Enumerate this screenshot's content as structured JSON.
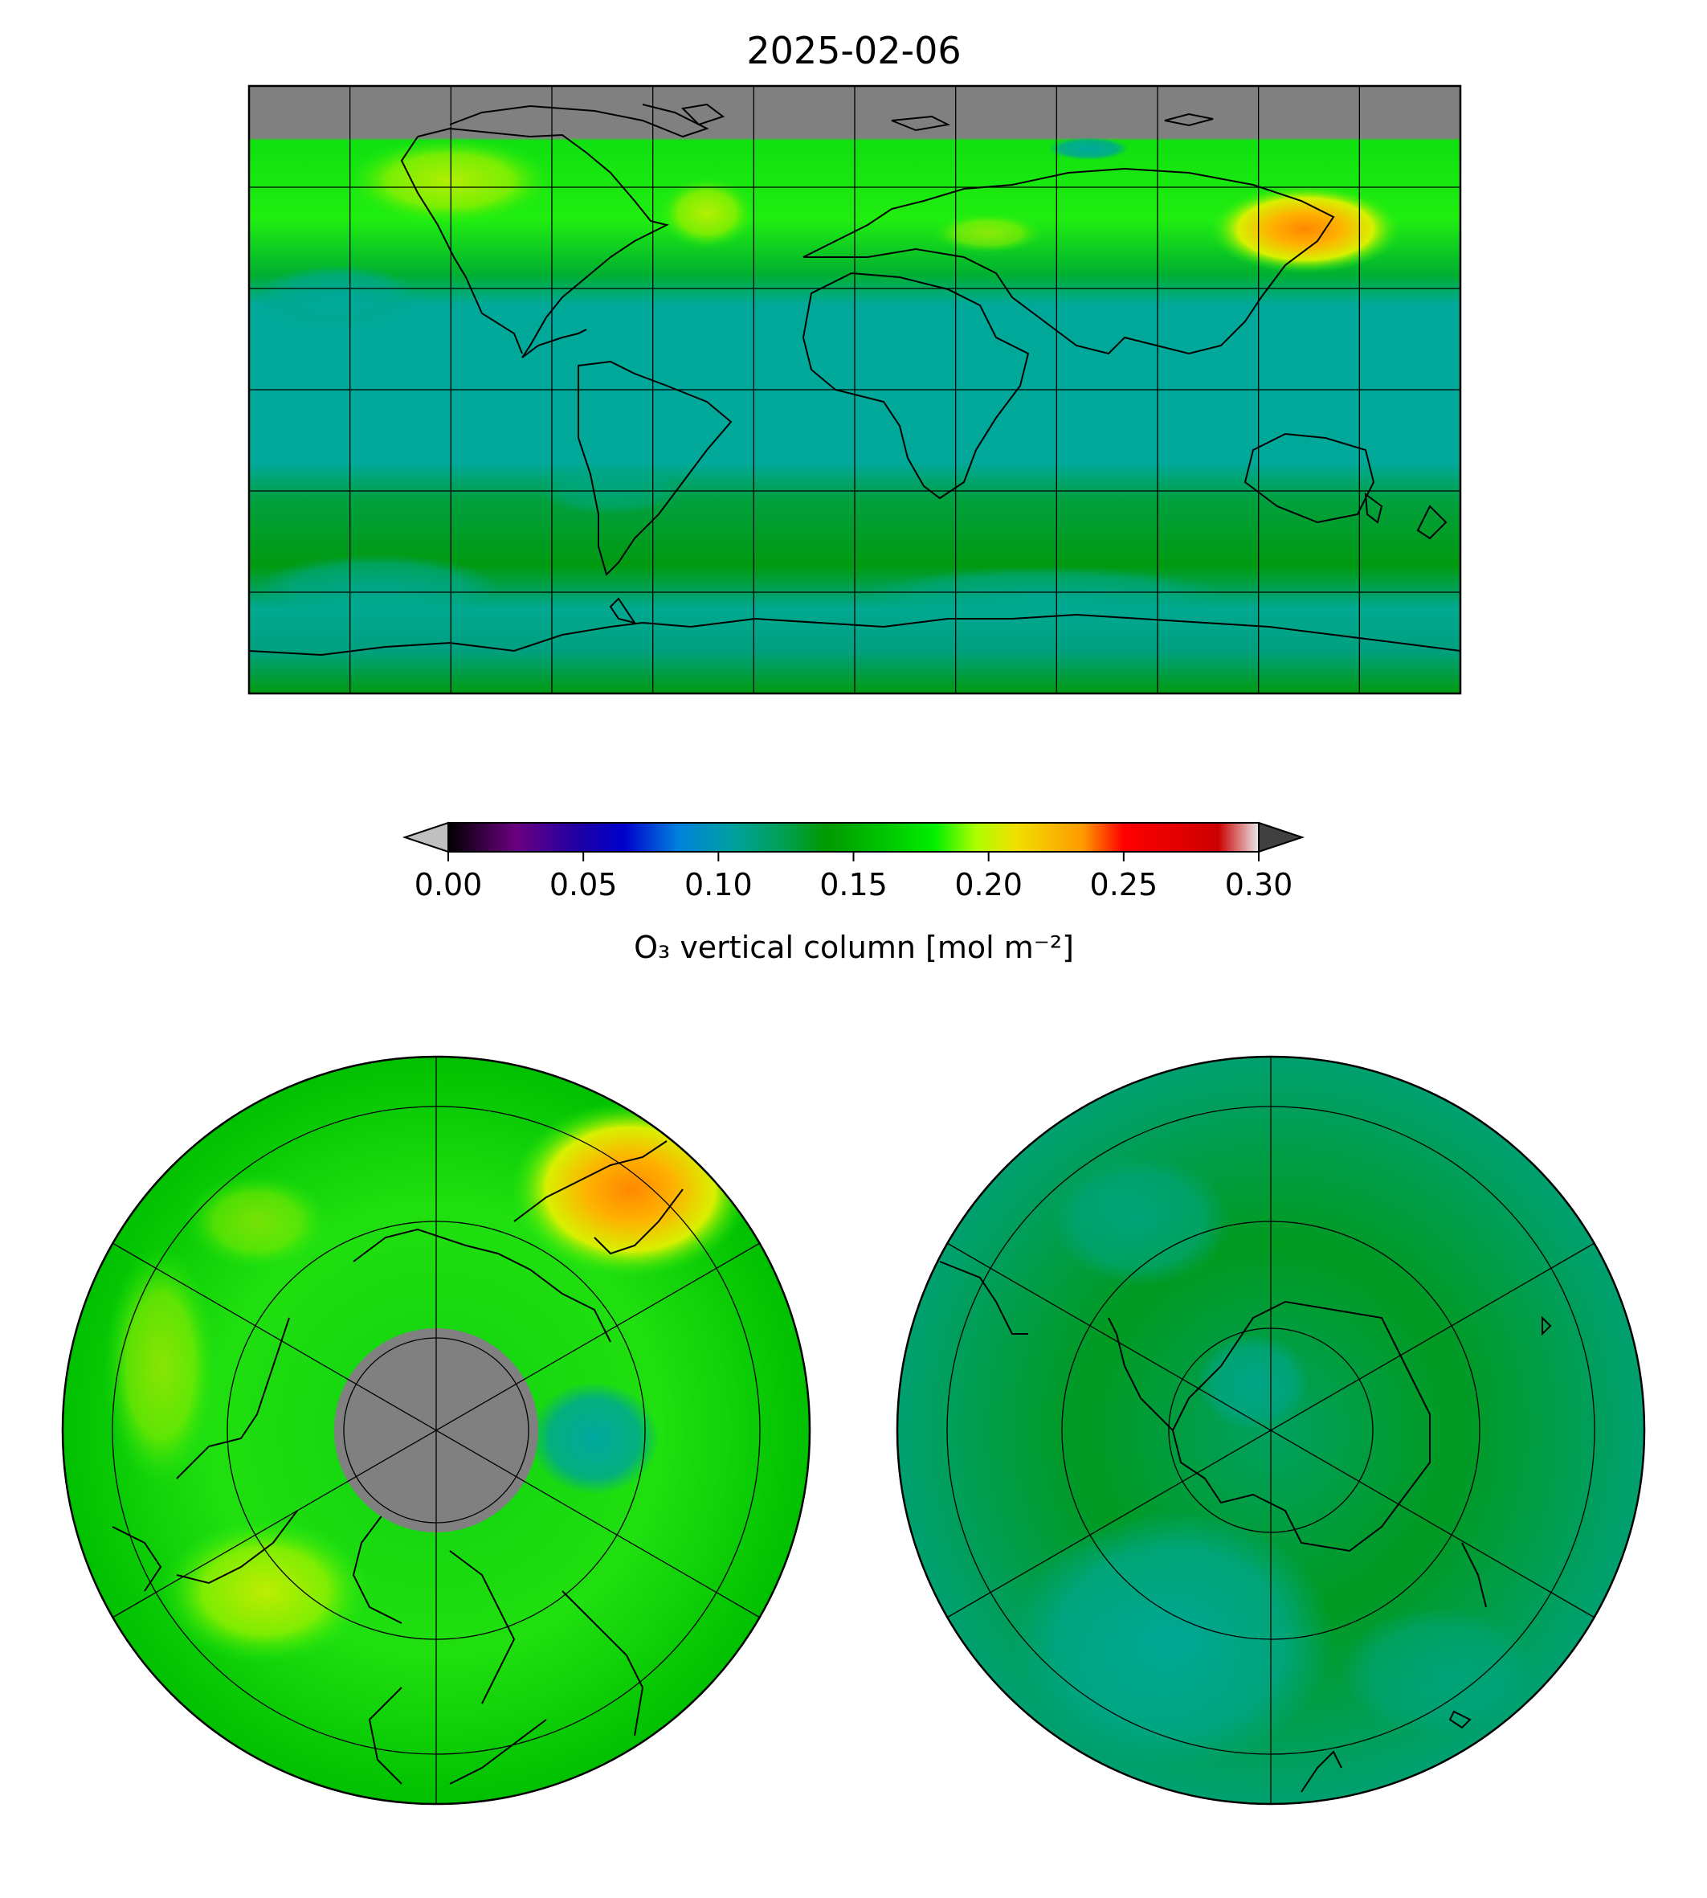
{
  "figure": {
    "title": "2025-02-06"
  },
  "colorbar": {
    "label": "O₃ vertical column [mol m⁻²]",
    "ticks": [
      "0.00",
      "0.05",
      "0.10",
      "0.15",
      "0.20",
      "0.25",
      "0.30"
    ],
    "range": [
      0.0,
      0.3
    ],
    "extend": "both",
    "stops": [
      {
        "v": 0.0,
        "color": "#000000"
      },
      {
        "v": 0.025,
        "color": "#6a0080"
      },
      {
        "v": 0.05,
        "color": "#1a00a8"
      },
      {
        "v": 0.065,
        "color": "#0000cc"
      },
      {
        "v": 0.085,
        "color": "#0080dd"
      },
      {
        "v": 0.105,
        "color": "#00a0a0"
      },
      {
        "v": 0.125,
        "color": "#00a050"
      },
      {
        "v": 0.14,
        "color": "#009900"
      },
      {
        "v": 0.165,
        "color": "#00cc00"
      },
      {
        "v": 0.18,
        "color": "#00f000"
      },
      {
        "v": 0.195,
        "color": "#aaff00"
      },
      {
        "v": 0.21,
        "color": "#f0e000"
      },
      {
        "v": 0.235,
        "color": "#ff9900"
      },
      {
        "v": 0.25,
        "color": "#ff0000"
      },
      {
        "v": 0.285,
        "color": "#cc0000"
      },
      {
        "v": 0.3,
        "color": "#e8e8e8"
      }
    ],
    "under_color": "#c0c0c0",
    "over_color": "#404040"
  },
  "colors": {
    "missing": "#808080",
    "tropics": "#00a89a",
    "midlat": "#00c000",
    "bright": "#20ee10",
    "high": "#ff9900",
    "coast": "#000000"
  },
  "maps": {
    "global": {
      "projection": "PlateCarree",
      "gridline_lon_step_deg": 30,
      "gridline_lat_step_deg": 30
    },
    "north_polar": {
      "projection": "NorthPolarStereo",
      "missing_polar_cap": true
    },
    "south_polar": {
      "projection": "SouthPolarStereo"
    }
  }
}
